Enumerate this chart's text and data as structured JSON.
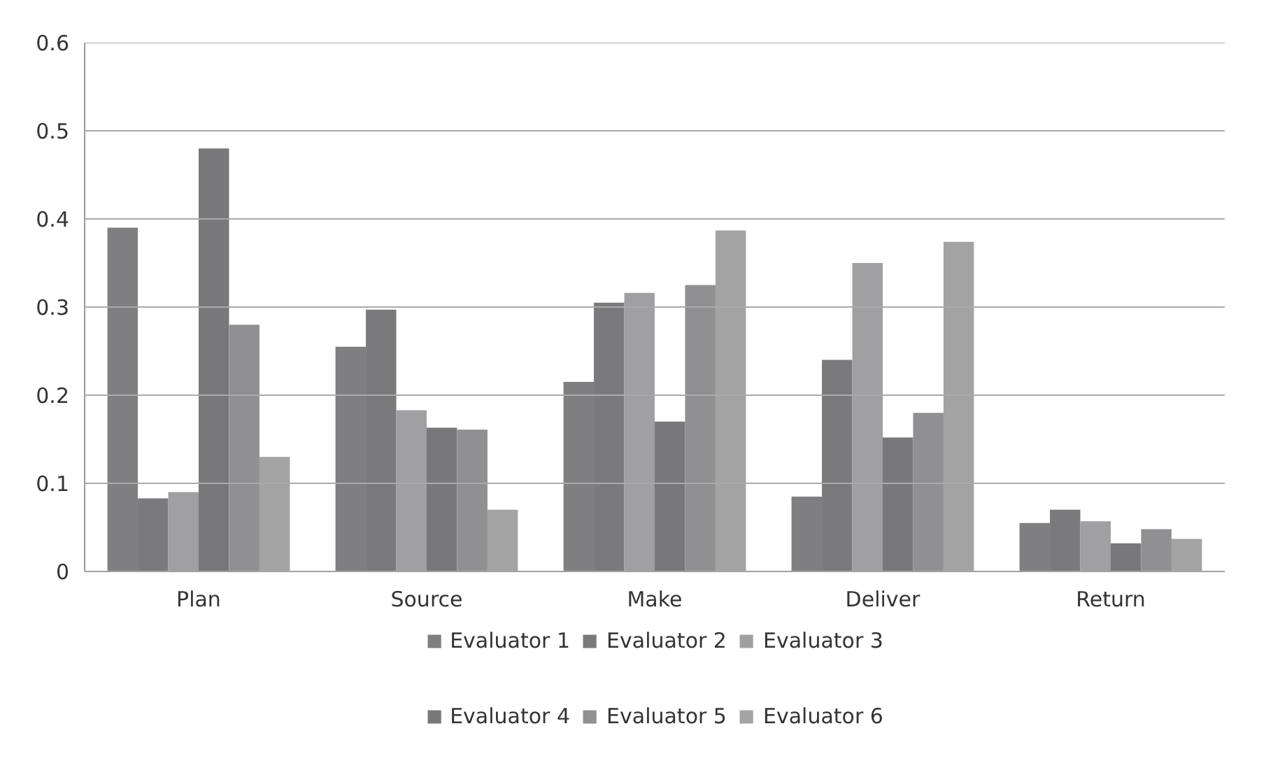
{
  "chart_data": {
    "type": "bar",
    "categories": [
      "Plan",
      "Source",
      "Make",
      "Deliver",
      "Return"
    ],
    "series": [
      {
        "name": "Evaluator 1",
        "color": "#7f7f81",
        "values": [
          0.39,
          0.255,
          0.215,
          0.085,
          0.055
        ]
      },
      {
        "name": "Evaluator 2",
        "color": "#7a7a7c",
        "values": [
          0.083,
          0.297,
          0.305,
          0.24,
          0.07
        ]
      },
      {
        "name": "Evaluator 3",
        "color": "#a0a0a2",
        "values": [
          0.09,
          0.183,
          0.316,
          0.35,
          0.057
        ]
      },
      {
        "name": "Evaluator 4",
        "color": "#78787a",
        "values": [
          0.48,
          0.163,
          0.17,
          0.152,
          0.032
        ]
      },
      {
        "name": "Evaluator 5",
        "color": "#909092",
        "values": [
          0.28,
          0.161,
          0.325,
          0.18,
          0.048
        ]
      },
      {
        "name": "Evaluator 6",
        "color": "#a3a3a3",
        "values": [
          0.13,
          0.07,
          0.387,
          0.374,
          0.037
        ]
      }
    ],
    "ylim": [
      0,
      0.6
    ],
    "yticks": [
      0,
      0.1,
      0.2,
      0.3,
      0.4,
      0.5,
      0.6
    ],
    "grid": "y",
    "legend": "bottom"
  }
}
